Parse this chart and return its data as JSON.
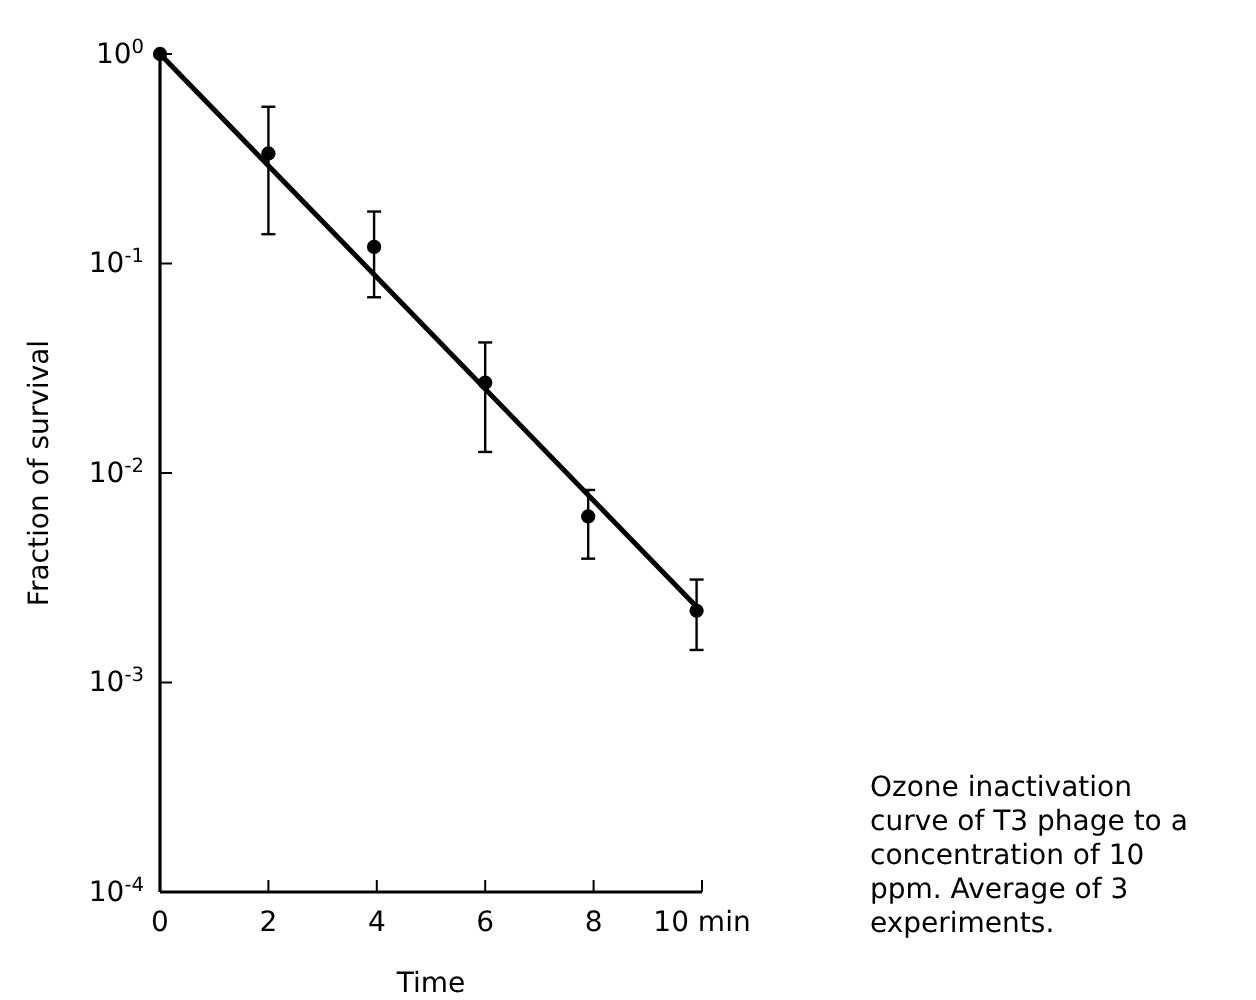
{
  "chart_data": {
    "type": "scatter",
    "xlabel": "Time",
    "ylabel": "Fraction of survival",
    "log": "y",
    "grid": false,
    "xlim": [
      0,
      10
    ],
    "ylim": [
      0.0001,
      1
    ],
    "xticks": [
      0,
      2,
      4,
      6,
      8,
      {
        "value": 10,
        "label": "10 min"
      }
    ],
    "yticks": [
      {
        "value": 0.0001,
        "label": "10$^{-4}$"
      },
      {
        "value": 0.001,
        "label": "10$^{-3}$"
      },
      {
        "value": 0.01,
        "label": "10$^{-2}$"
      },
      {
        "value": 0.1,
        "label": "10$^{-1}$"
      },
      {
        "value": 1,
        "label": "10$^{0}$"
      }
    ],
    "series": [
      {
        "color": "#000000",
        "marker": "circle",
        "x": [
          0,
          2,
          3.95,
          6,
          7.9,
          9.9
        ],
        "values": [
          1,
          0.335,
          0.12,
          0.027,
          0.0062,
          0.0022
        ],
        "errors": [
          null,
          [
            0.138,
            0.56
          ],
          [
            0.069,
            0.177
          ],
          [
            0.0126,
            0.042
          ],
          [
            0.0039,
            0.0083
          ],
          [
            0.00143,
            0.0031
          ]
        ]
      },
      {
        "type": "line",
        "color": "#000000",
        "marker": "none",
        "line_style": "solid",
        "x": [
          0,
          9.9
        ],
        "values": [
          1,
          0.0023
        ]
      }
    ],
    "annotations": [
      "Ozone inactivation curve of T3 phage to a concentration of 10 ppm. Average of 3 experiments."
    ]
  }
}
